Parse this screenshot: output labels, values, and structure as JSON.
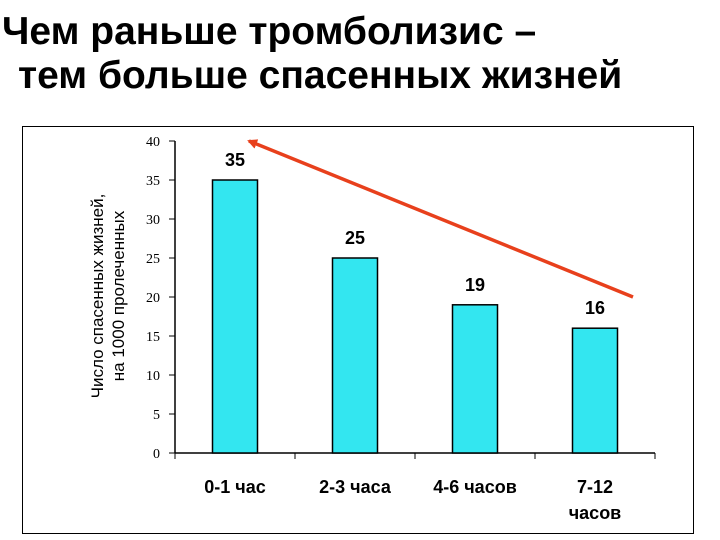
{
  "title_lines": [
    "Чем раньше тромболизис –",
    "тем больше спасенных жизней"
  ],
  "chart_data": {
    "type": "bar",
    "categories": [
      [
        "0-1 час"
      ],
      [
        "2-3 часа"
      ],
      [
        "4-6 часов"
      ],
      [
        "7-12",
        "часов"
      ]
    ],
    "values": [
      35,
      25,
      19,
      16
    ],
    "data_labels": [
      "35",
      "25",
      "19",
      "16"
    ],
    "ylabel_lines": [
      "Число спасенных жизней,",
      "на 1000 пролеченных"
    ],
    "ylim": [
      0,
      40
    ],
    "yticks": [
      0,
      5,
      10,
      15,
      20,
      25,
      30,
      35,
      40
    ],
    "grid": false,
    "bar_color": "#33E6F0",
    "trend_arrow": {
      "color": "#E8401C",
      "from_category": 3,
      "from_value": 20,
      "to_category": 0,
      "to_value": 40
    }
  }
}
